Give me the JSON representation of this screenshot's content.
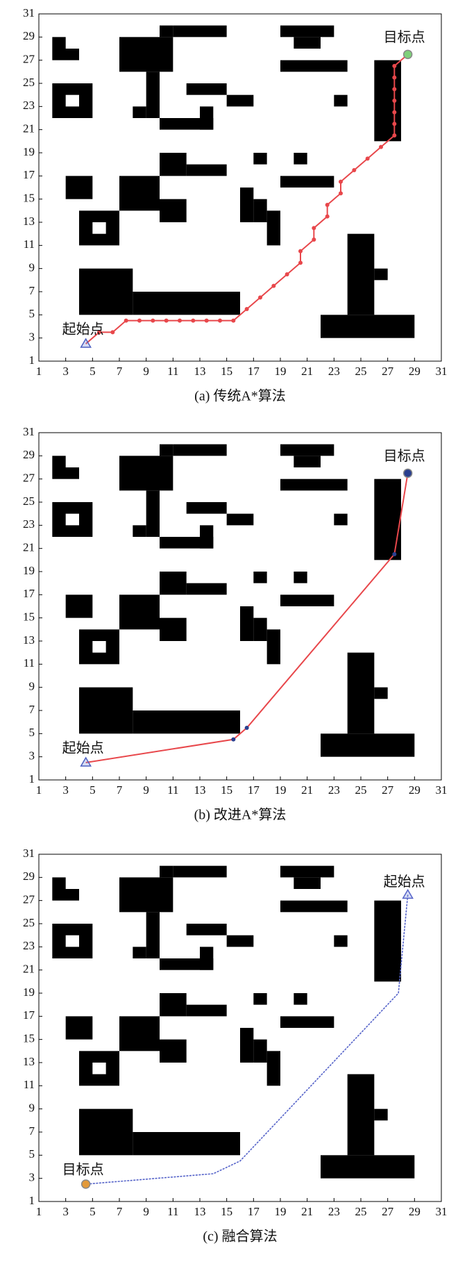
{
  "chart_data": [
    {
      "type": "line",
      "title": "(a) 传统A*算法",
      "start_label": "起始点",
      "end_label": "目标点",
      "x": [
        4.5,
        5.5,
        6.5,
        7.5,
        8.5,
        9.5,
        10.5,
        11.5,
        12.5,
        13.5,
        14.5,
        15.5,
        16.5,
        17.5,
        18.5,
        19.5,
        20.5,
        20.5,
        21.5,
        21.5,
        22.5,
        22.5,
        23.5,
        23.5,
        24.5,
        25.5,
        26.5,
        27.5,
        27.5,
        27.5,
        27.5,
        27.5,
        27.5,
        27.5,
        28.5
      ],
      "series": [
        {
          "color": "#e8474b",
          "values": [
            2.5,
            3.5,
            3.5,
            4.5,
            4.5,
            4.5,
            4.5,
            4.5,
            4.5,
            4.5,
            4.5,
            4.5,
            5.5,
            6.5,
            7.5,
            8.5,
            9.5,
            10.5,
            11.5,
            12.5,
            13.5,
            14.5,
            15.5,
            16.5,
            17.5,
            18.5,
            19.5,
            20.5,
            21.5,
            22.5,
            23.5,
            24.5,
            25.5,
            26.5,
            27.5
          ]
        }
      ],
      "marker": true,
      "start_marker_color": "#4a5fc1",
      "end_marker_color": "#7fd07a",
      "xlim": [
        1,
        31
      ],
      "ylim": [
        1,
        31
      ],
      "xticks": [
        1,
        3,
        5,
        7,
        9,
        11,
        13,
        15,
        17,
        19,
        21,
        23,
        25,
        27,
        29,
        31
      ],
      "yticks": [
        1,
        3,
        5,
        7,
        9,
        11,
        13,
        15,
        17,
        19,
        21,
        23,
        25,
        27,
        29,
        31
      ]
    },
    {
      "type": "line",
      "title": "(b) 改进A*算法",
      "start_label": "起始点",
      "end_label": "目标点",
      "x": [
        4.5,
        15.5,
        16.5,
        27.5,
        28.5
      ],
      "series": [
        {
          "color": "#e8474b",
          "values": [
            2.5,
            4.5,
            5.5,
            20.5,
            27.5
          ]
        }
      ],
      "marker": true,
      "start_marker_color": "#4a5fc1",
      "end_marker_color": "#2a3f8f",
      "xlim": [
        1,
        31
      ],
      "ylim": [
        1,
        31
      ],
      "xticks": [
        1,
        3,
        5,
        7,
        9,
        11,
        13,
        15,
        17,
        19,
        21,
        23,
        25,
        27,
        29,
        31
      ],
      "yticks": [
        1,
        3,
        5,
        7,
        9,
        11,
        13,
        15,
        17,
        19,
        21,
        23,
        25,
        27,
        29,
        31
      ]
    },
    {
      "type": "line",
      "title": "(c) 融合算法",
      "start_label": "起始点",
      "end_label": "目标点",
      "x": [
        28.5,
        27.8,
        16,
        14,
        4.5
      ],
      "series": [
        {
          "color": "#5563c9",
          "values": [
            27.5,
            19,
            4.5,
            3.4,
            2.5
          ]
        }
      ],
      "marker": false,
      "start_marker_color": "#5563c9",
      "end_marker_color": "#e39a3a",
      "xlim": [
        1,
        31
      ],
      "ylim": [
        1,
        31
      ],
      "xticks": [
        1,
        3,
        5,
        7,
        9,
        11,
        13,
        15,
        17,
        19,
        21,
        23,
        25,
        27,
        29,
        31
      ],
      "yticks": [
        1,
        3,
        5,
        7,
        9,
        11,
        13,
        15,
        17,
        19,
        21,
        23,
        25,
        27,
        29,
        31
      ]
    }
  ]
}
